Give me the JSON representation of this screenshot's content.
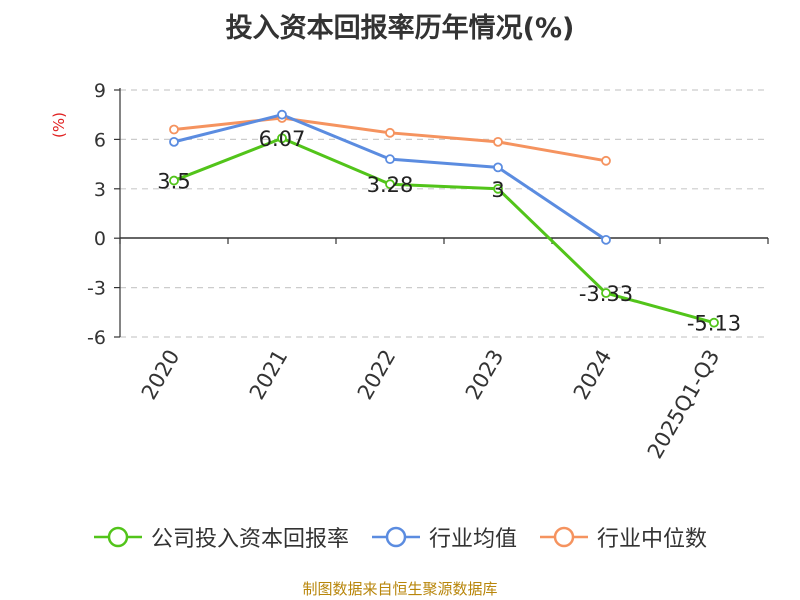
{
  "chart_data": {
    "type": "line",
    "title": "投入资本回报率历年情况(%)",
    "ylabel": "(%)",
    "xlabel": "",
    "categories": [
      "2020",
      "2021",
      "2022",
      "2023",
      "2024",
      "2025Q1-Q3"
    ],
    "ylim": [
      -6,
      9
    ],
    "yticks": [
      9,
      6,
      3,
      0,
      -3,
      -6
    ],
    "grid": true,
    "legend_position": "bottom",
    "series": [
      {
        "name": "公司投入资本回报率",
        "color": "#52c41a",
        "values": [
          3.5,
          6.07,
          3.28,
          3,
          -3.33,
          -5.13
        ],
        "labels": [
          "3.5",
          "6.07",
          "3.28",
          "3",
          "-3.33",
          "-5.13"
        ]
      },
      {
        "name": "行业均值",
        "color": "#5b8ce0",
        "values": [
          5.85,
          7.5,
          4.8,
          4.3,
          -0.1,
          null
        ],
        "labels": []
      },
      {
        "name": "行业中位数",
        "color": "#f5935f",
        "values": [
          6.6,
          7.3,
          6.4,
          5.85,
          4.7,
          null
        ],
        "labels": []
      }
    ]
  },
  "source": "制图数据来自恒生聚源数据库"
}
